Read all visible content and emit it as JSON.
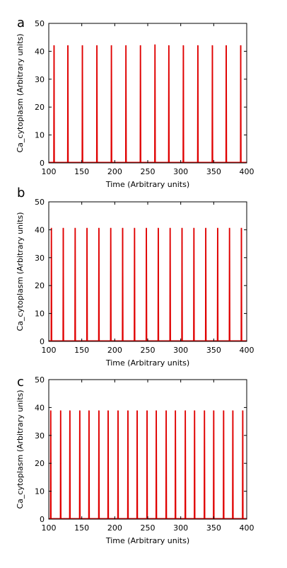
{
  "chart_data": [
    {
      "panel_label": "a",
      "type": "line",
      "xlabel": "Time (Arbitrary units)",
      "ylabel": "Ca_cytoplasm (Arbitrary units)",
      "xlim": [
        100,
        400
      ],
      "ylim": [
        0,
        50
      ],
      "xticks": [
        100,
        150,
        200,
        250,
        300,
        350,
        400
      ],
      "yticks": [
        0,
        10,
        20,
        30,
        40,
        50
      ],
      "series_color": "#e00000",
      "baseline": 0.2,
      "spike_peaks": [
        42,
        42,
        42,
        42,
        42,
        42,
        42,
        42.3,
        42,
        42,
        42,
        42,
        42,
        42
      ],
      "spike_times": [
        108,
        129,
        151,
        173,
        195,
        217,
        239,
        261,
        282,
        304,
        326,
        348,
        369,
        391
      ]
    },
    {
      "panel_label": "b",
      "type": "line",
      "xlabel": "Time (Arbitrary units)",
      "ylabel": "Ca_cytoplasm (Arbitrary units)",
      "xlim": [
        100,
        400
      ],
      "ylim": [
        0,
        50
      ],
      "xticks": [
        100,
        150,
        200,
        250,
        300,
        350,
        400
      ],
      "yticks": [
        0,
        10,
        20,
        30,
        40,
        50
      ],
      "series_color": "#e00000",
      "baseline": 0.2,
      "spike_peaks": [
        40.5,
        40.5,
        40.5,
        40.5,
        40.5,
        40.5,
        40.5,
        40.5,
        40.5,
        40.5,
        40.5,
        40.5,
        40.5,
        40.5,
        40.5,
        40.5,
        40.5
      ],
      "spike_times": [
        104,
        122,
        140,
        158,
        176,
        194,
        212,
        230,
        248,
        266,
        284,
        302,
        320,
        338,
        356,
        374,
        392
      ]
    },
    {
      "panel_label": "c",
      "type": "line",
      "xlabel": "Time (Arbitrary units)",
      "ylabel": "Ca_cytoplasm (Arbitrary units)",
      "xlim": [
        100,
        400
      ],
      "ylim": [
        0,
        50
      ],
      "xticks": [
        100,
        150,
        200,
        250,
        300,
        350,
        400
      ],
      "yticks": [
        0,
        10,
        20,
        30,
        40,
        50
      ],
      "series_color": "#e00000",
      "baseline": 0.2,
      "spike_peaks": [
        38.8,
        38.8,
        38.8,
        38.8,
        38.8,
        38.8,
        38.8,
        38.8,
        38.8,
        38.8,
        38.8,
        38.8,
        38.8,
        38.8,
        38.8,
        38.8,
        38.8,
        38.8,
        38.8,
        38.8,
        38.8
      ],
      "spike_times": [
        103,
        118,
        132,
        147,
        161,
        176,
        190,
        205,
        220,
        234,
        249,
        263,
        278,
        292,
        307,
        321,
        336,
        350,
        365,
        379,
        394
      ]
    }
  ]
}
